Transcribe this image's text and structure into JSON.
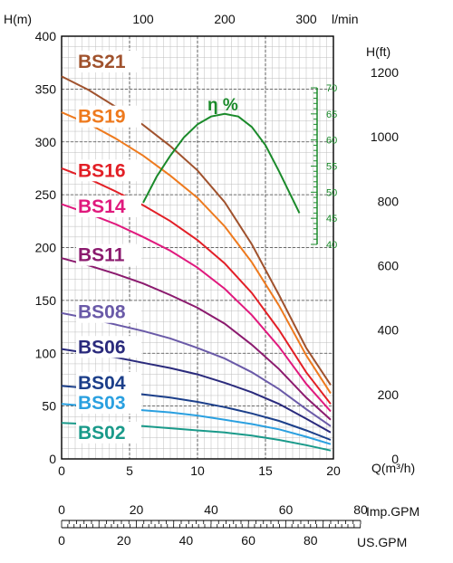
{
  "chart_data": {
    "type": "line",
    "axes": {
      "head_m": {
        "label": "H(m)",
        "range": [
          0,
          400
        ],
        "ticks": [
          0,
          50,
          100,
          150,
          200,
          250,
          300,
          350,
          400
        ]
      },
      "head_ft": {
        "label": "H(ft)",
        "ticks": [
          0,
          200,
          400,
          600,
          800,
          1000,
          1200
        ]
      },
      "flow_m3h": {
        "label": "Q(m³/h)",
        "range": [
          0,
          20
        ],
        "ticks": [
          0,
          5,
          10,
          15,
          20
        ]
      },
      "flow_lmin": {
        "label": "l/min",
        "ticks": [
          100,
          200,
          300
        ]
      },
      "flow_imp_gpm": {
        "label": "Imp.GPM",
        "range": [
          0,
          80
        ],
        "ticks": [
          0,
          20,
          40,
          60,
          80
        ]
      },
      "flow_us_gpm": {
        "label": "US.GPM",
        "range": [
          0,
          90
        ],
        "ticks": [
          0,
          20,
          40,
          60,
          80
        ]
      },
      "efficiency": {
        "label": "η %",
        "range": [
          40,
          70
        ],
        "ticks": [
          40,
          45,
          50,
          55,
          60,
          65,
          70
        ]
      }
    },
    "grid": true,
    "series": [
      {
        "name": "BS21",
        "color": "#a0522d",
        "labelQ": 1.2,
        "labelH": 370,
        "x": [
          0,
          2,
          4,
          6,
          8,
          10,
          12,
          14,
          16,
          18,
          19.8
        ],
        "y": [
          362,
          349,
          333,
          316,
          296,
          273,
          243,
          203,
          155,
          105,
          70
        ]
      },
      {
        "name": "BS19",
        "color": "#ee7a1e",
        "labelQ": 1.2,
        "labelH": 318,
        "x": [
          0,
          2,
          4,
          6,
          8,
          10,
          12,
          14,
          16,
          18,
          19.8
        ],
        "y": [
          328,
          317,
          303,
          287,
          268,
          247,
          220,
          186,
          145,
          98,
          62
        ]
      },
      {
        "name": "BS16",
        "color": "#e21f26",
        "labelQ": 1.2,
        "labelH": 267,
        "x": [
          0,
          2,
          4,
          6,
          8,
          10,
          12,
          14,
          16,
          18,
          19.8
        ],
        "y": [
          275,
          265,
          253,
          240,
          225,
          207,
          185,
          157,
          122,
          82,
          52
        ]
      },
      {
        "name": "BS14",
        "color": "#e0197d",
        "labelQ": 1.2,
        "labelH": 233,
        "x": [
          0,
          2,
          4,
          6,
          8,
          10,
          12,
          14,
          16,
          18,
          19.8
        ],
        "y": [
          241,
          232,
          222,
          210,
          197,
          181,
          161,
          136,
          106,
          71,
          45
        ]
      },
      {
        "name": "BS11",
        "color": "#8b1a6e",
        "labelQ": 1.2,
        "labelH": 187,
        "x": [
          0,
          2,
          4,
          6,
          8,
          10,
          12,
          14,
          16,
          18,
          19.8
        ],
        "y": [
          190,
          183,
          175,
          166,
          155,
          143,
          128,
          108,
          85,
          58,
          37
        ]
      },
      {
        "name": "BS08",
        "color": "#6a5aa8",
        "labelQ": 1.2,
        "labelH": 133,
        "x": [
          0,
          2,
          4,
          6,
          8,
          10,
          12,
          14,
          16,
          18,
          19.8
        ],
        "y": [
          138,
          133,
          127,
          121,
          114,
          105,
          95,
          82,
          66,
          47,
          31
        ]
      },
      {
        "name": "BS06",
        "color": "#2a2a7c",
        "labelQ": 1.2,
        "labelH": 100,
        "x": [
          0,
          2,
          4,
          6,
          8,
          10,
          12,
          14,
          16,
          18,
          19.8
        ],
        "y": [
          104,
          100,
          96,
          91,
          86,
          80,
          72,
          63,
          52,
          38,
          25
        ]
      },
      {
        "name": "BS04",
        "color": "#1c3f8a",
        "labelQ": 1.2,
        "labelH": 66,
        "x": [
          0,
          2,
          4,
          6,
          8,
          10,
          12,
          14,
          16,
          18,
          19.8
        ],
        "y": [
          69,
          67,
          64,
          61,
          58,
          54,
          49,
          43,
          36,
          27,
          18
        ]
      },
      {
        "name": "BS03",
        "color": "#2aa0e0",
        "labelQ": 1.2,
        "labelH": 47,
        "x": [
          0,
          2,
          4,
          6,
          8,
          10,
          12,
          14,
          16,
          18,
          19.8
        ],
        "y": [
          52,
          50,
          48,
          46,
          44,
          41,
          37,
          33,
          28,
          21,
          14
        ]
      },
      {
        "name": "BS02",
        "color": "#1a9a8a",
        "labelQ": 1.2,
        "labelH": 19,
        "x": [
          0,
          2,
          4,
          6,
          8,
          10,
          12,
          14,
          16,
          18,
          19.8
        ],
        "y": [
          34,
          33,
          32,
          31,
          29,
          27,
          25,
          22,
          18,
          13,
          8
        ]
      }
    ],
    "efficiency_curve": {
      "name": "η %",
      "color": "#1a8a2a",
      "x": [
        6,
        7,
        8,
        9,
        10,
        11,
        12,
        13,
        14,
        15,
        16,
        17.5
      ],
      "y": [
        48,
        53,
        57,
        60.5,
        63,
        64.5,
        65,
        64.5,
        62.5,
        59,
        54,
        46
      ]
    }
  }
}
